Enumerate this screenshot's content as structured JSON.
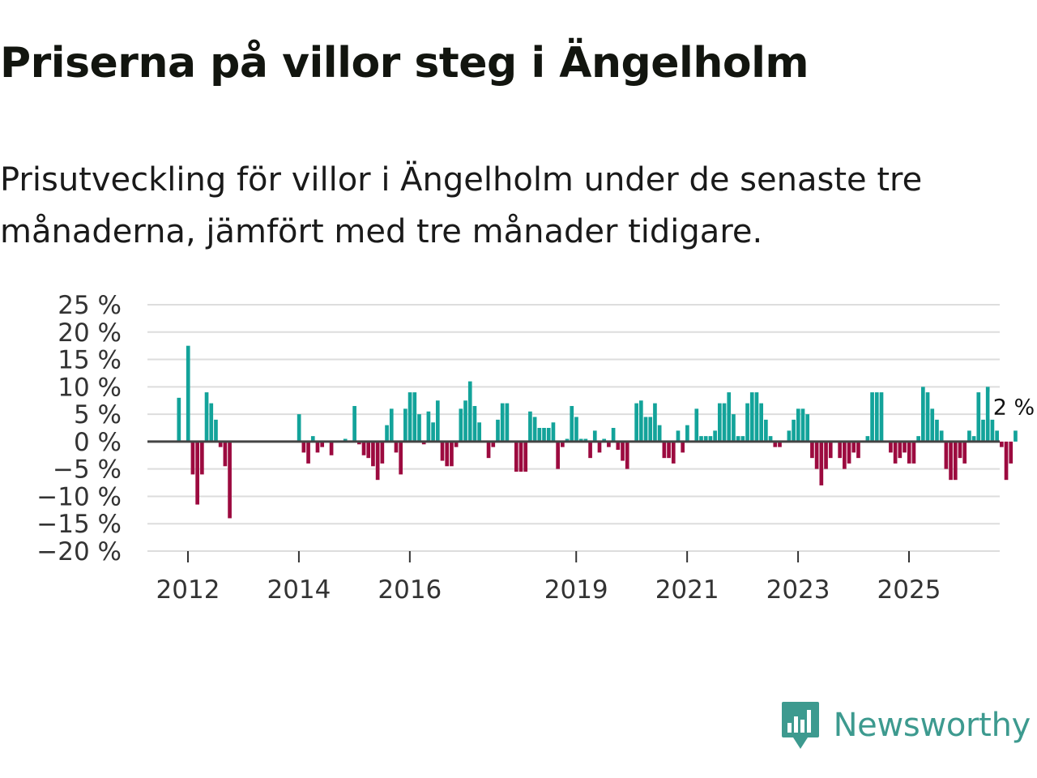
{
  "header": {
    "title": "Priserna på villor steg i Ängelholm",
    "subtitle": "Prisutveckling för villor i Ängelholm under de senaste tre månaderna, jämfört med tre månader tidigare."
  },
  "brand": {
    "name": "Newsworthy",
    "icon": "newsworthy-logo-icon",
    "color": "#3d9a8f"
  },
  "colors": {
    "positive": "#13a39a",
    "negative": "#9c0a3f",
    "grid": "#dddddd",
    "zero": "#444444"
  },
  "chart_data": {
    "type": "bar",
    "title": "Priserna på villor steg i Ängelholm",
    "ylabel": "",
    "xlabel": "",
    "ylim": [
      -20,
      25
    ],
    "yticks": [
      25,
      20,
      15,
      10,
      5,
      0,
      -5,
      -10,
      -15,
      -20
    ],
    "ytick_labels": [
      "25 %",
      "20 %",
      "15 %",
      "10 %",
      "5 %",
      "0 %",
      "−5 %",
      "−10 %",
      "−15 %",
      "−20 %"
    ],
    "xticks": [
      2012,
      2014,
      2016,
      2019,
      2021,
      2023,
      2025
    ],
    "xtick_labels": [
      "2012",
      "2014",
      "2016",
      "2019",
      "2021",
      "2023",
      "2025"
    ],
    "x_start": 2011.67,
    "months_per_bar": 1,
    "values": [
      0,
      0,
      8,
      0,
      17.5,
      -6,
      -11.5,
      -6,
      9,
      7,
      4,
      -1,
      -4.5,
      -14,
      0,
      0,
      0,
      0,
      0,
      0,
      0,
      0,
      0,
      0,
      0,
      0,
      0,
      0,
      5,
      -2,
      -4,
      1,
      -2,
      -1,
      0,
      -2.5,
      0,
      0,
      0.5,
      0,
      6.5,
      -0.5,
      -2.5,
      -3,
      -4.5,
      -7,
      -4,
      3,
      6,
      -2,
      -6,
      6,
      9,
      9,
      5,
      -0.5,
      5.5,
      3.5,
      7.5,
      -3.5,
      -4.5,
      -4.5,
      -1,
      6,
      7.5,
      11,
      6.5,
      3.5,
      0,
      -3,
      -1,
      4,
      7,
      7,
      0,
      -5.5,
      -5.5,
      -5.5,
      5.5,
      4.5,
      2.5,
      2.5,
      2.5,
      3.5,
      -5,
      -1,
      0.5,
      6.5,
      4.5,
      0.5,
      0.5,
      -3,
      2,
      -2,
      0.5,
      -1,
      2.5,
      -1.5,
      -3.5,
      -5,
      0,
      7,
      7.5,
      4.5,
      4.5,
      7,
      3,
      -3,
      -3,
      -4,
      2,
      -2,
      3,
      0,
      6,
      1,
      1,
      1,
      2,
      7,
      7,
      9,
      5,
      1,
      1,
      7,
      9,
      9,
      7,
      4,
      1,
      -1,
      -1,
      0,
      2,
      4,
      6,
      6,
      5,
      -3,
      -5,
      -8,
      -5,
      -3,
      0,
      -3,
      -5,
      -4,
      -2,
      -3,
      0,
      1,
      9,
      9,
      9,
      0,
      -2,
      -4,
      -3,
      -2,
      -4,
      -4,
      1,
      10,
      9,
      6,
      4,
      2,
      -5,
      -7,
      -7,
      -3,
      -4,
      2,
      1,
      9,
      4,
      10,
      4,
      2,
      -1,
      -7,
      -4,
      2
    ],
    "annotation": {
      "label": "2 %",
      "value": 2,
      "note": "latest value"
    }
  }
}
